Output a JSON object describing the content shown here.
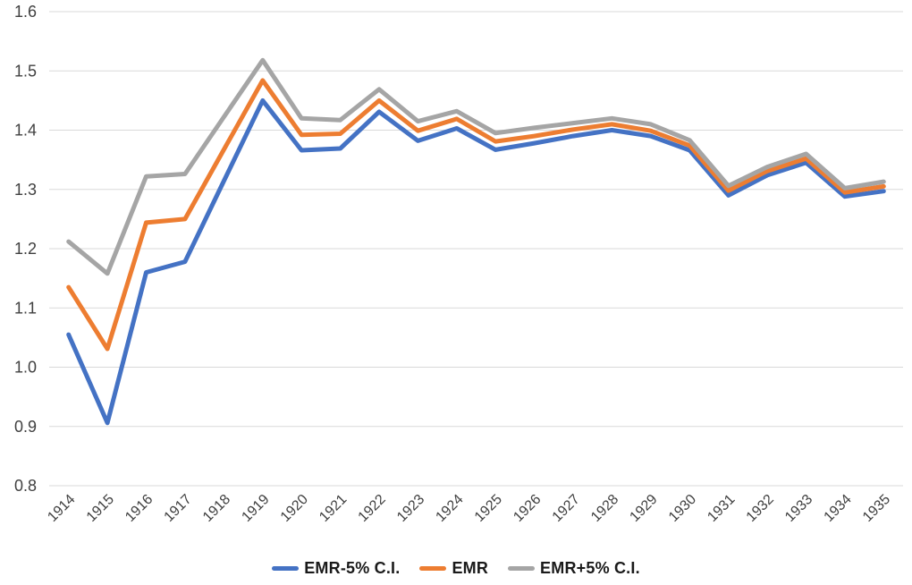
{
  "chart_data": {
    "type": "line",
    "categories": [
      "1914",
      "1915",
      "1916",
      "1917",
      "1918",
      "1919",
      "1920",
      "1921",
      "1922",
      "1923",
      "1924",
      "1925",
      "1926",
      "1927",
      "1928",
      "1929",
      "1930",
      "1931",
      "1932",
      "1933",
      "1934",
      "1935"
    ],
    "series": [
      {
        "name": "EMR-5% C.I.",
        "color": "#4472C4",
        "values": [
          1.055,
          0.906,
          1.16,
          1.178,
          1.314,
          1.45,
          1.366,
          1.369,
          1.431,
          1.382,
          1.403,
          1.367,
          1.378,
          1.39,
          1.4,
          1.39,
          1.366,
          1.29,
          1.324,
          1.345,
          1.288,
          1.297
        ]
      },
      {
        "name": "EMR",
        "color": "#ED7D31",
        "values": [
          1.135,
          1.031,
          1.244,
          1.25,
          1.367,
          1.484,
          1.392,
          1.394,
          1.45,
          1.399,
          1.419,
          1.381,
          1.39,
          1.401,
          1.41,
          1.399,
          1.374,
          1.298,
          1.331,
          1.352,
          1.295,
          1.305
        ]
      },
      {
        "name": "EMR+5% C.I.",
        "color": "#A5A5A5",
        "values": [
          1.212,
          1.158,
          1.322,
          1.326,
          1.422,
          1.518,
          1.42,
          1.417,
          1.469,
          1.415,
          1.432,
          1.395,
          1.404,
          1.412,
          1.42,
          1.41,
          1.383,
          1.306,
          1.338,
          1.36,
          1.302,
          1.313
        ]
      }
    ],
    "title": "",
    "xlabel": "",
    "ylabel": "",
    "ylim": [
      0.8,
      1.6
    ],
    "yticks": [
      0.8,
      0.9,
      1.0,
      1.1,
      1.2,
      1.3,
      1.4,
      1.5,
      1.6
    ],
    "ytick_format_decimals": 1,
    "x_label_rotation_deg": -45,
    "grid": "horizontal",
    "gridline_color": "#D9D9D9",
    "tick_label_color": "#404040",
    "background_color": "#FFFFFF",
    "line_width": 5,
    "legend_position": "bottom"
  }
}
